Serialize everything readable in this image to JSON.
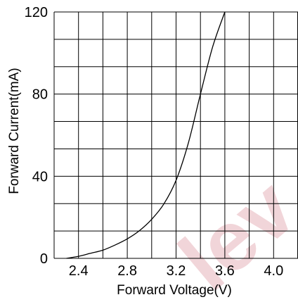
{
  "chart_data": {
    "type": "line",
    "xlabel": "Forward Voltage(V)",
    "ylabel": "Forward Current(mA)",
    "xlim": [
      2.2,
      4.2
    ],
    "ylim": [
      0,
      120
    ],
    "x_ticks": [
      {
        "value": 2.4,
        "label": "2.4"
      },
      {
        "value": 2.8,
        "label": "2.8"
      },
      {
        "value": 3.2,
        "label": "3.2"
      },
      {
        "value": 3.6,
        "label": "3.6"
      },
      {
        "value": 4.0,
        "label": "4.0"
      }
    ],
    "y_ticks": [
      {
        "value": 0,
        "label": "0"
      },
      {
        "value": 40,
        "label": "40"
      },
      {
        "value": 80,
        "label": "80"
      },
      {
        "value": 120,
        "label": "120"
      }
    ],
    "x_grid_step": 0.2,
    "y_grid_step": 13.33333,
    "grid": true,
    "series": [
      {
        "x": [
          2.3,
          2.4,
          2.5,
          2.6,
          2.7,
          2.8,
          2.9,
          3.0,
          3.1,
          3.2,
          3.3,
          3.4,
          3.5,
          3.6
        ],
        "y": [
          0,
          1,
          2.5,
          4,
          6.5,
          9.5,
          13.5,
          19,
          26.5,
          38,
          56,
          80,
          103,
          120
        ]
      }
    ]
  },
  "watermark": {
    "text": "lev",
    "color": "#f1d5d9"
  },
  "colors": {
    "line": "#000000",
    "grid": "#000000",
    "background": "#ffffff"
  }
}
